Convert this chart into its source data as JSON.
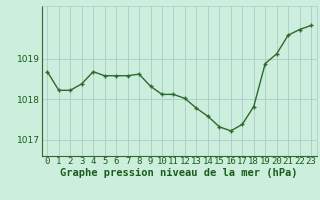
{
  "x": [
    0,
    1,
    2,
    3,
    4,
    5,
    6,
    7,
    8,
    9,
    10,
    11,
    12,
    13,
    14,
    15,
    16,
    17,
    18,
    19,
    20,
    21,
    22,
    23
  ],
  "y": [
    1018.68,
    1018.22,
    1018.22,
    1018.38,
    1018.68,
    1018.58,
    1018.58,
    1018.58,
    1018.62,
    1018.32,
    1018.12,
    1018.12,
    1018.02,
    1017.78,
    1017.58,
    1017.32,
    1017.22,
    1017.38,
    1017.82,
    1018.88,
    1019.12,
    1019.58,
    1019.72,
    1019.82
  ],
  "line_color": "#2d6a2d",
  "marker_color": "#2d6a2d",
  "bg_color": "#cceedd",
  "grid_color": "#aacccc",
  "xlabel": "Graphe pression niveau de la mer (hPa)",
  "yticks": [
    1017,
    1018,
    1019
  ],
  "ylim": [
    1016.6,
    1020.3
  ],
  "xlim": [
    -0.5,
    23.5
  ],
  "title_color": "#1a5c1a",
  "xlabel_fontsize": 7.5,
  "tick_fontsize": 6.5,
  "marker_size": 3.5,
  "line_width": 1.0
}
